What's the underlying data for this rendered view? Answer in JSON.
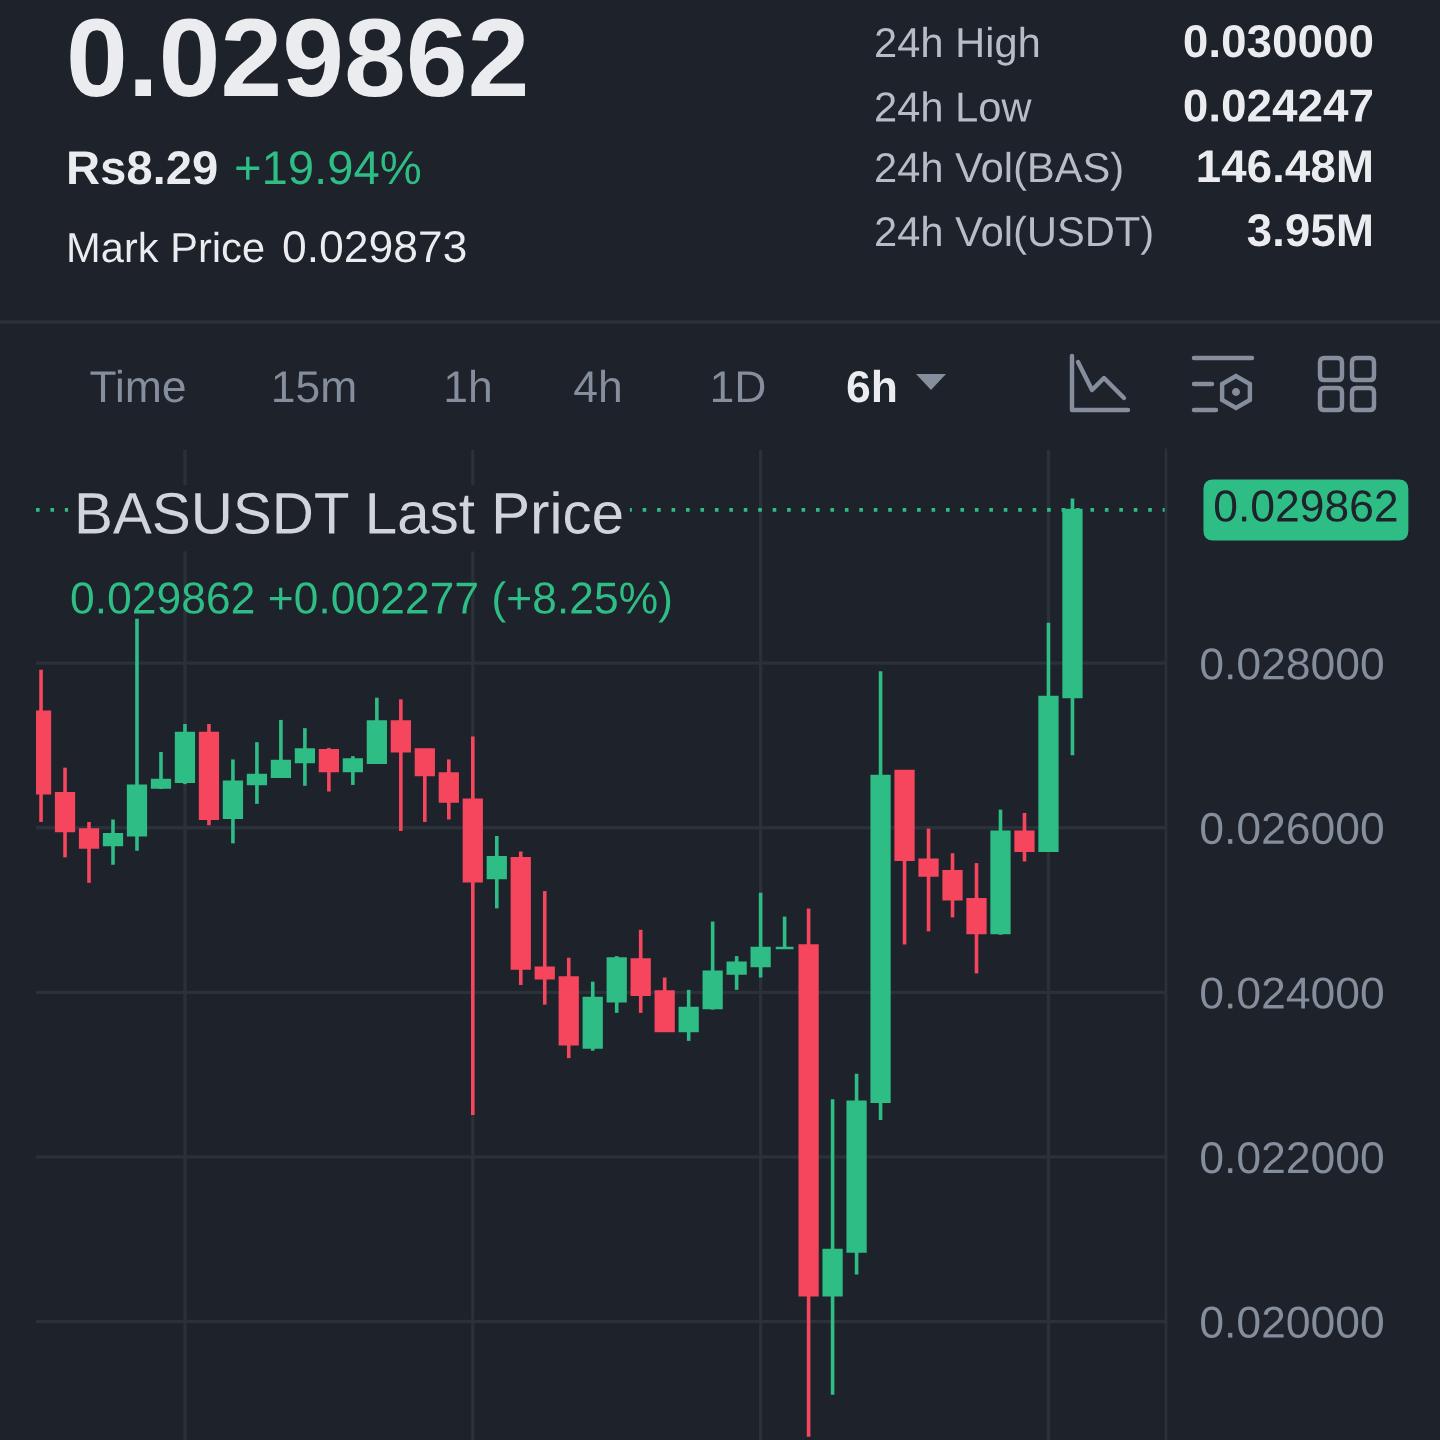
{
  "chart_data": {
    "type": "candlestick",
    "title": "BASUSDT Last Price",
    "subtitle": "0.029862 +0.002277 (+8.25%)",
    "annotations": [
      "0.029862",
      "Rs8.29",
      "+19.94%",
      "Mark Price",
      "0.029873",
      "24h High",
      "0.030000",
      "24h Low",
      "0.024247",
      "24h Vol(BAS)",
      "146.48M",
      "24h Vol(USDT)",
      "3.95M",
      "Time",
      "15m",
      "1h",
      "4h",
      "1D",
      "6h"
    ],
    "categories": [
      null,
      null,
      null,
      null,
      null,
      null,
      null,
      null,
      null,
      null,
      null,
      null,
      null,
      null,
      null,
      null,
      null,
      null,
      null,
      null,
      null,
      null,
      null,
      null,
      null,
      null,
      null,
      null,
      null,
      null,
      null,
      null,
      null,
      null,
      null,
      null,
      null,
      null,
      null,
      null,
      null,
      null,
      null,
      null
    ],
    "ohlc": [
      [
        0.02741,
        0.02792,
        0.02607,
        0.02642
      ],
      [
        0.02642,
        0.02673,
        0.02564,
        0.02596
      ],
      [
        0.02598,
        0.02607,
        0.02533,
        0.02576
      ],
      [
        0.02579,
        0.0261,
        0.02555,
        0.02592
      ],
      [
        0.02591,
        0.02854,
        0.02572,
        0.02651
      ],
      [
        0.02649,
        0.02692,
        0.02647,
        0.02658
      ],
      [
        0.02656,
        0.02726,
        0.02653,
        0.02715
      ],
      [
        0.02715,
        0.02726,
        0.02603,
        0.02611
      ],
      [
        0.02612,
        0.02683,
        0.02581,
        0.02656
      ],
      [
        0.02653,
        0.02704,
        0.02629,
        0.02664
      ],
      [
        0.02662,
        0.02731,
        0.02661,
        0.02681
      ],
      [
        0.0268,
        0.02721,
        0.02651,
        0.02695
      ],
      [
        0.02694,
        0.02697,
        0.02644,
        0.02669
      ],
      [
        0.02669,
        0.02687,
        0.02652,
        0.02683
      ],
      [
        0.02679,
        0.02758,
        0.02678,
        0.02729
      ],
      [
        0.02729,
        0.02756,
        0.02596,
        0.02693
      ],
      [
        0.02695,
        0.02696,
        0.02607,
        0.02664
      ],
      [
        0.02666,
        0.02683,
        0.0261,
        0.02632
      ],
      [
        0.02634,
        0.02711,
        0.02251,
        0.02535
      ],
      [
        0.02539,
        0.0259,
        0.02502,
        0.02564
      ],
      [
        0.02563,
        0.02571,
        0.02409,
        0.02429
      ],
      [
        0.0243,
        0.02523,
        0.02385,
        0.02417
      ],
      [
        0.02418,
        0.02442,
        0.0232,
        0.02337
      ],
      [
        0.02333,
        0.02413,
        0.02329,
        0.02393
      ],
      [
        0.02389,
        0.02444,
        0.02375,
        0.02441
      ],
      [
        0.0244,
        0.02476,
        0.02375,
        0.02397
      ],
      [
        0.02401,
        0.02418,
        0.02353,
        0.02353
      ],
      [
        0.02353,
        0.02403,
        0.02341,
        0.02381
      ],
      [
        0.02381,
        0.02486,
        0.02379,
        0.02425
      ],
      [
        0.02423,
        0.02444,
        0.02403,
        0.02436
      ],
      [
        0.02432,
        0.02521,
        0.02418,
        0.02454
      ],
      [
        0.02454,
        0.02492,
        0.02454,
        0.02454
      ],
      [
        0.02457,
        0.02502,
        0.0186,
        0.02032
      ],
      [
        0.02032,
        0.0227,
        0.01911,
        0.02087
      ],
      [
        0.02085,
        0.02301,
        0.02057,
        0.02267
      ],
      [
        0.02267,
        0.0279,
        0.02245,
        0.02663
      ],
      [
        0.02669,
        0.02669,
        0.02458,
        0.02561
      ],
      [
        0.02561,
        0.02599,
        0.02474,
        0.02542
      ],
      [
        0.02547,
        0.02569,
        0.02491,
        0.02513
      ],
      [
        0.02513,
        0.02557,
        0.02423,
        0.02472
      ],
      [
        0.02472,
        0.02622,
        0.0247,
        0.02595
      ],
      [
        0.02595,
        0.02618,
        0.02559,
        0.02572
      ],
      [
        0.02572,
        0.02849,
        0.02571,
        0.02759
      ],
      [
        0.02759,
        0.03,
        0.02688,
        0.029862
      ]
    ],
    "colors": [
      "#f6465d",
      "#f6465d",
      "#f6465d",
      "#2ebd85",
      "#2ebd85",
      "#2ebd85",
      "#2ebd85",
      "#f6465d",
      "#2ebd85",
      "#2ebd85",
      "#2ebd85",
      "#2ebd85",
      "#f6465d",
      "#2ebd85",
      "#2ebd85",
      "#f6465d",
      "#f6465d",
      "#f6465d",
      "#f6465d",
      "#2ebd85",
      "#f6465d",
      "#f6465d",
      "#f6465d",
      "#2ebd85",
      "#2ebd85",
      "#f6465d",
      "#f6465d",
      "#2ebd85",
      "#2ebd85",
      "#2ebd85",
      "#2ebd85",
      "#2ebd85",
      "#f6465d",
      "#2ebd85",
      "#2ebd85",
      "#2ebd85",
      "#f6465d",
      "#f6465d",
      "#f6465d",
      "#f6465d",
      "#2ebd85",
      "#f6465d",
      "#2ebd85",
      "#2ebd85"
    ],
    "ylim": [
      0.01856,
      0.03059
    ],
    "yticks": [
      {
        "value": 0.02,
        "label": "0.020000"
      },
      {
        "value": 0.022,
        "label": "0.022000"
      },
      {
        "value": 0.024,
        "label": "0.024000"
      },
      {
        "value": 0.026,
        "label": "0.026000"
      },
      {
        "value": 0.028,
        "label": "0.028000"
      }
    ],
    "ref_lines": [
      {
        "axis": "y",
        "value": 0.029862,
        "label": "0.029862",
        "color": "#2ebd85",
        "line_style": "dotted"
      }
    ],
    "grid": true,
    "tick_labels": "y"
  }
}
